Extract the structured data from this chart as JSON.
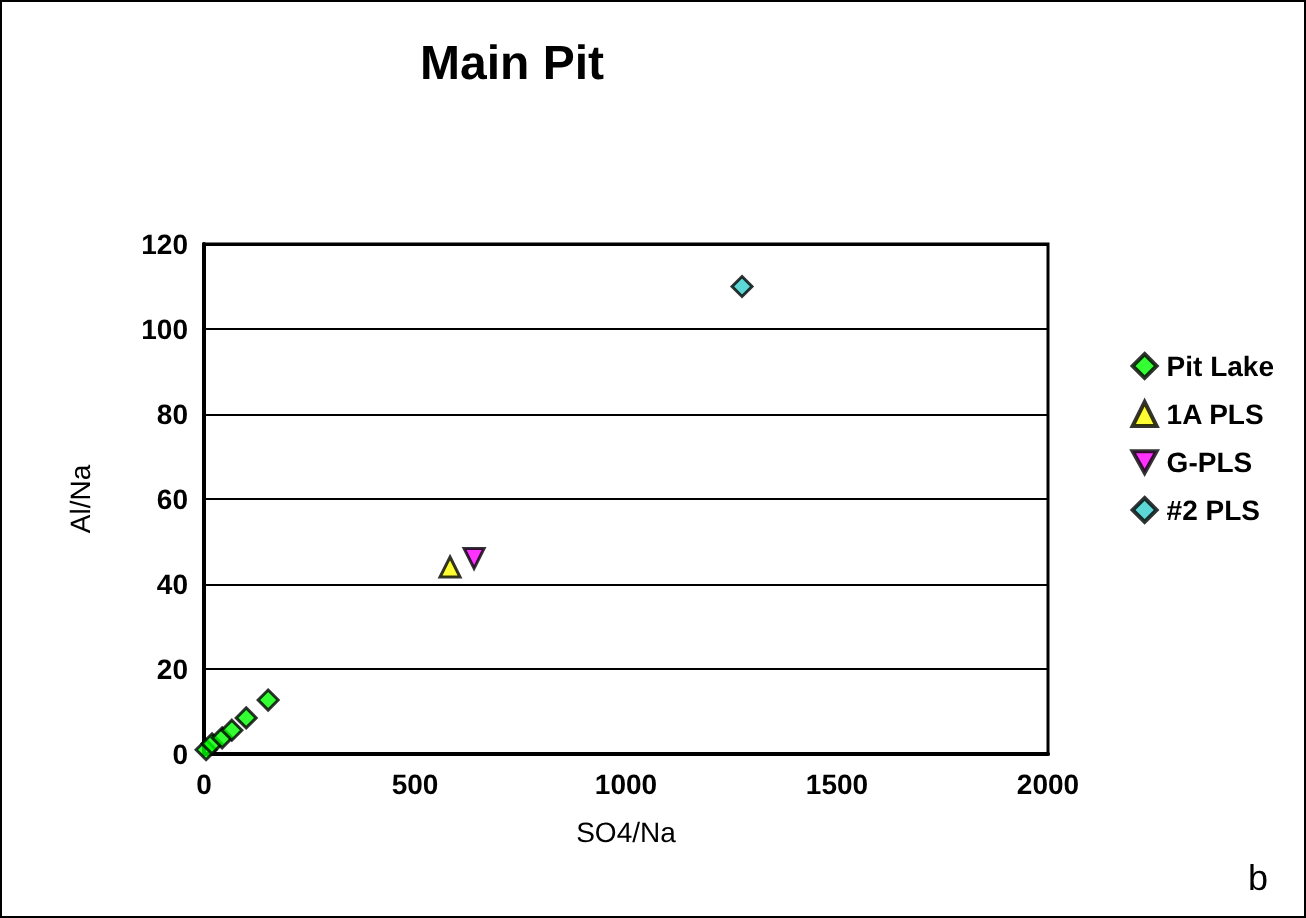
{
  "chart_data": {
    "type": "scatter",
    "title": "Main Pit",
    "xlabel": "SO4/Na",
    "ylabel": "Al/Na",
    "xlim": [
      0,
      2000
    ],
    "xticks": [
      0,
      500,
      1000,
      1500,
      2000
    ],
    "ylim": [
      0,
      120
    ],
    "yticks": [
      0,
      20,
      40,
      60,
      80,
      100,
      120
    ],
    "grid": "y",
    "legend": "right",
    "annotations": [
      "b"
    ],
    "series": [
      {
        "name": "Pit Lake",
        "color": "#00ff00",
        "marker": "diamond",
        "x": [
          5,
          19,
          43,
          66,
          100,
          152
        ],
        "values": [
          1,
          2.4,
          3.8,
          5.6,
          8.5,
          12.7
        ]
      },
      {
        "name": "1A PLS",
        "color": "#ffff00",
        "marker": "triangle",
        "x": [
          583
        ],
        "values": [
          44
        ]
      },
      {
        "name": "G-PLS",
        "color": "#ff00ff",
        "marker": "triangle-down",
        "x": [
          640
        ],
        "values": [
          46
        ]
      },
      {
        "name": "#2 PLS",
        "color": "#33cccc",
        "marker": "diamond",
        "x": [
          1275
        ],
        "values": [
          110
        ]
      }
    ]
  }
}
